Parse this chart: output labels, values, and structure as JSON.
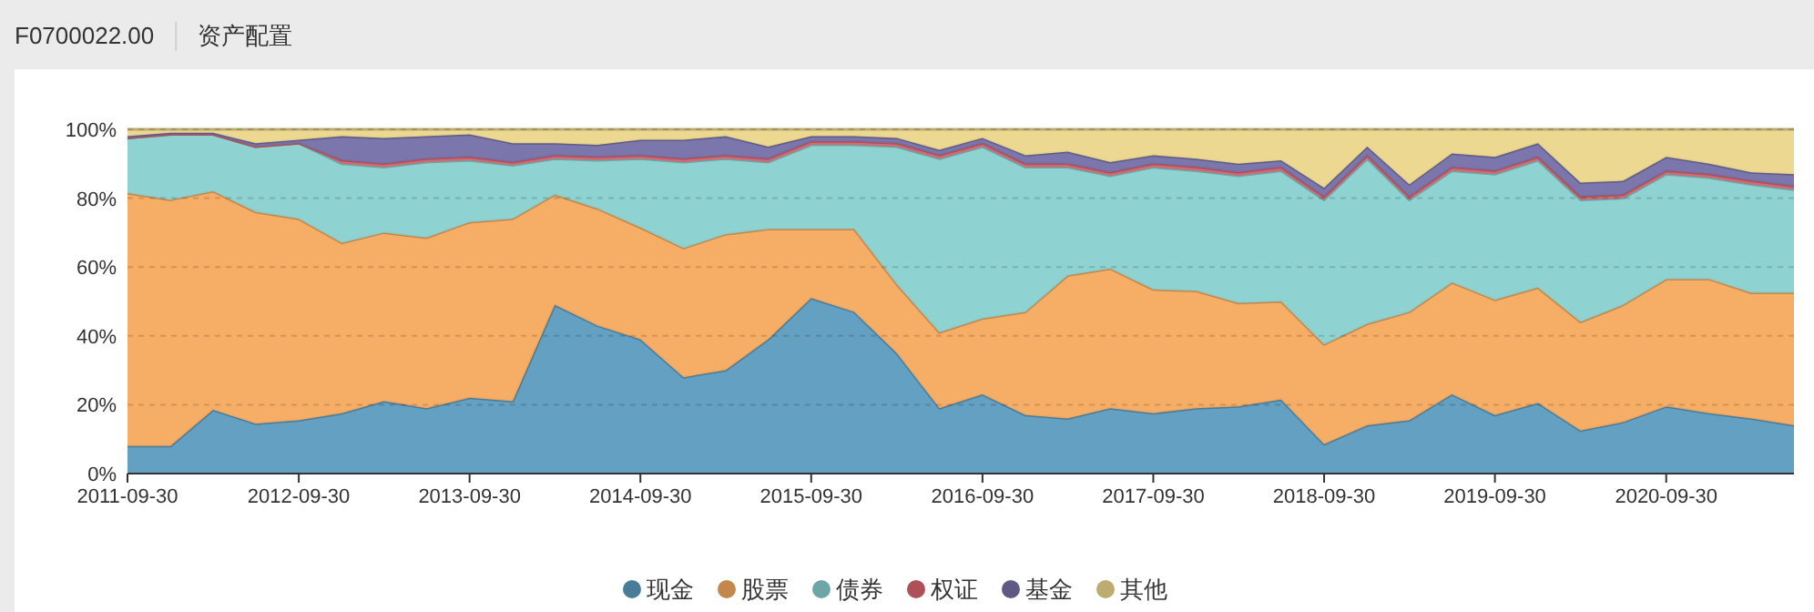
{
  "chart_data": {
    "type": "area",
    "stacked": true,
    "title": "资产配置",
    "subtitle": "F0700022.00",
    "x": [
      "2011-09-30",
      "2011-12-31",
      "2012-03-31",
      "2012-06-30",
      "2012-09-30",
      "2012-12-31",
      "2013-03-31",
      "2013-06-30",
      "2013-09-30",
      "2013-12-31",
      "2014-03-31",
      "2014-06-30",
      "2014-09-30",
      "2014-12-31",
      "2015-03-31",
      "2015-06-30",
      "2015-09-30",
      "2015-12-31",
      "2016-03-31",
      "2016-06-30",
      "2016-09-30",
      "2016-12-31",
      "2017-03-31",
      "2017-06-30",
      "2017-09-30",
      "2017-12-31",
      "2018-03-31",
      "2018-06-30",
      "2018-09-30",
      "2018-12-31",
      "2019-03-31",
      "2019-06-30",
      "2019-09-30",
      "2019-12-31",
      "2020-03-31",
      "2020-06-30",
      "2020-09-30",
      "2020-12-31",
      "2021-03-31",
      "2021-06-30"
    ],
    "xlim": [
      "2011-09-30",
      "2021-06-30"
    ],
    "xticks": [
      "2011-09-30",
      "2012-09-30",
      "2013-09-30",
      "2014-09-30",
      "2015-09-30",
      "2016-09-30",
      "2017-09-30",
      "2018-09-30",
      "2019-09-30",
      "2020-09-30"
    ],
    "ylim": [
      0,
      100
    ],
    "yticks": [
      {
        "value": 0,
        "label": "0%"
      },
      {
        "value": 20,
        "label": "20%"
      },
      {
        "value": 40,
        "label": "40%"
      },
      {
        "value": 60,
        "label": "60%"
      },
      {
        "value": 80,
        "label": "80%"
      },
      {
        "value": 100,
        "label": "100%"
      }
    ],
    "grid": "y",
    "legend": "bottom",
    "series": [
      {
        "name": "现金",
        "color": "#5b9bbf",
        "values": [
          8,
          8,
          18.5,
          14.5,
          15.5,
          17.5,
          21,
          19,
          22,
          21,
          49,
          43,
          39,
          28,
          30,
          39,
          51,
          47,
          35,
          19,
          23,
          17,
          16,
          19,
          17.5,
          19,
          19.5,
          21.5,
          8.5,
          14,
          15.5,
          23,
          17,
          20.5,
          12.5,
          15,
          19.5,
          17.5,
          16,
          14
        ]
      },
      {
        "name": "股票",
        "color": "#f5a95e",
        "values": [
          73.5,
          71.5,
          63.5,
          61.5,
          58.5,
          49.5,
          49,
          49.5,
          51,
          53,
          32,
          34,
          32.5,
          37.5,
          39.5,
          32,
          20,
          24,
          20,
          22,
          22,
          30,
          41.5,
          40.5,
          36,
          34,
          30,
          28.5,
          29,
          29.5,
          31.5,
          32.5,
          33.5,
          33.5,
          31.5,
          34,
          37,
          39,
          36.5,
          38.5
        ]
      },
      {
        "name": "债券",
        "color": "#88d0d0",
        "values": [
          16,
          19,
          16.5,
          19,
          22,
          23,
          19,
          22,
          18,
          15.5,
          10.5,
          14,
          20,
          25,
          22,
          19.5,
          24.5,
          24.5,
          40,
          50.5,
          50,
          42,
          31.5,
          27,
          35.5,
          35,
          37,
          38,
          42,
          48,
          32.5,
          32.5,
          36.5,
          37,
          35.5,
          31,
          30.5,
          29.5,
          31.5,
          30
        ]
      },
      {
        "name": "权证",
        "color": "#d9646e",
        "values": [
          0,
          0,
          0,
          0,
          0,
          1,
          1,
          1,
          1,
          1,
          1,
          1,
          1,
          1,
          1,
          1,
          1,
          1,
          1,
          1,
          1,
          1,
          1,
          1,
          1,
          1,
          1,
          1,
          1,
          1,
          1,
          1,
          1,
          1,
          1,
          1,
          1,
          1,
          1,
          1
        ]
      },
      {
        "name": "基金",
        "color": "#7470a8",
        "values": [
          0.5,
          0.5,
          0.5,
          1,
          1,
          7,
          7.5,
          6.5,
          6.5,
          5.5,
          3.5,
          3.5,
          4.5,
          5.5,
          5.5,
          3.5,
          1.5,
          1.5,
          1.5,
          1.5,
          1.5,
          2.5,
          3.5,
          3,
          2.5,
          2.5,
          2.5,
          2,
          2.5,
          2.5,
          3.5,
          4,
          4,
          4,
          4,
          4,
          4,
          3,
          2.5,
          3.5
        ]
      },
      {
        "name": "其他",
        "color": "#ecd68c",
        "values": [
          2,
          1,
          1,
          4,
          3,
          2,
          2.5,
          2,
          1.5,
          4,
          4,
          4.5,
          3,
          3,
          2,
          5,
          2,
          2,
          2.5,
          6,
          2.5,
          7.5,
          6.5,
          9.5,
          7.5,
          8.5,
          10,
          9,
          17,
          5,
          16,
          7,
          8,
          4,
          15.5,
          15,
          8,
          10,
          12.5,
          13
        ]
      }
    ]
  }
}
